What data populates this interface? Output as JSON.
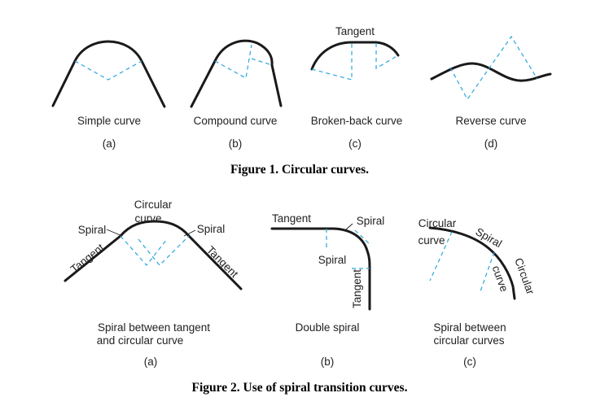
{
  "figure1": {
    "panels": [
      {
        "name": "Simple curve",
        "tag": "(a)"
      },
      {
        "name": "Compound curve",
        "tag": "(b)"
      },
      {
        "name": "Broken-back curve",
        "tag": "(c)",
        "annotation": "Tangent"
      },
      {
        "name": "Reverse curve",
        "tag": "(d)"
      }
    ],
    "caption": "Figure 1. Circular curves."
  },
  "figure2": {
    "panels": [
      {
        "name_line1": "Spiral between tangent",
        "name_line2": "and circular curve",
        "tag": "(a)",
        "labels": {
          "circular_line1": "Circular",
          "circular_line2": "curve",
          "spiral_left": "Spiral",
          "spiral_right": "Spiral",
          "tangent_left": "Tangent",
          "tangent_right": "Tangent"
        }
      },
      {
        "name_line1": "Double spiral",
        "tag": "(b)",
        "labels": {
          "tangent_top": "Tangent",
          "spiral_top": "Spiral",
          "spiral_mid": "Spiral",
          "tangent_vertical": "Tangent"
        }
      },
      {
        "name_line1": "Spiral between",
        "name_line2": "circular curves",
        "tag": "(c)",
        "labels": {
          "circular_top": "Circular",
          "curve_top": "curve",
          "spiral": "Spiral",
          "circular_right": "Circular",
          "curve_right": "curve"
        }
      }
    ],
    "caption": "Figure 2. Use of spiral transition curves."
  }
}
